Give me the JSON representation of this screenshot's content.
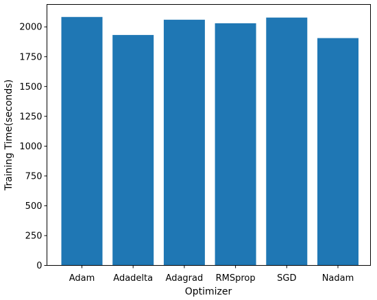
{
  "chart_data": {
    "type": "bar",
    "categories": [
      "Adam",
      "Adadelta",
      "Adagrad",
      "RMSprop",
      "SGD",
      "Nadam"
    ],
    "values": [
      2083,
      1932,
      2060,
      2030,
      2078,
      1906
    ],
    "xlabel": "Optimizer",
    "ylabel": "Training Time(seconds)",
    "ylim": [
      0,
      2188
    ],
    "yticks": [
      0,
      250,
      500,
      750,
      1000,
      1250,
      1500,
      1750,
      2000
    ],
    "grid": false,
    "legend": "none",
    "bar_color": "#1f77b4"
  }
}
